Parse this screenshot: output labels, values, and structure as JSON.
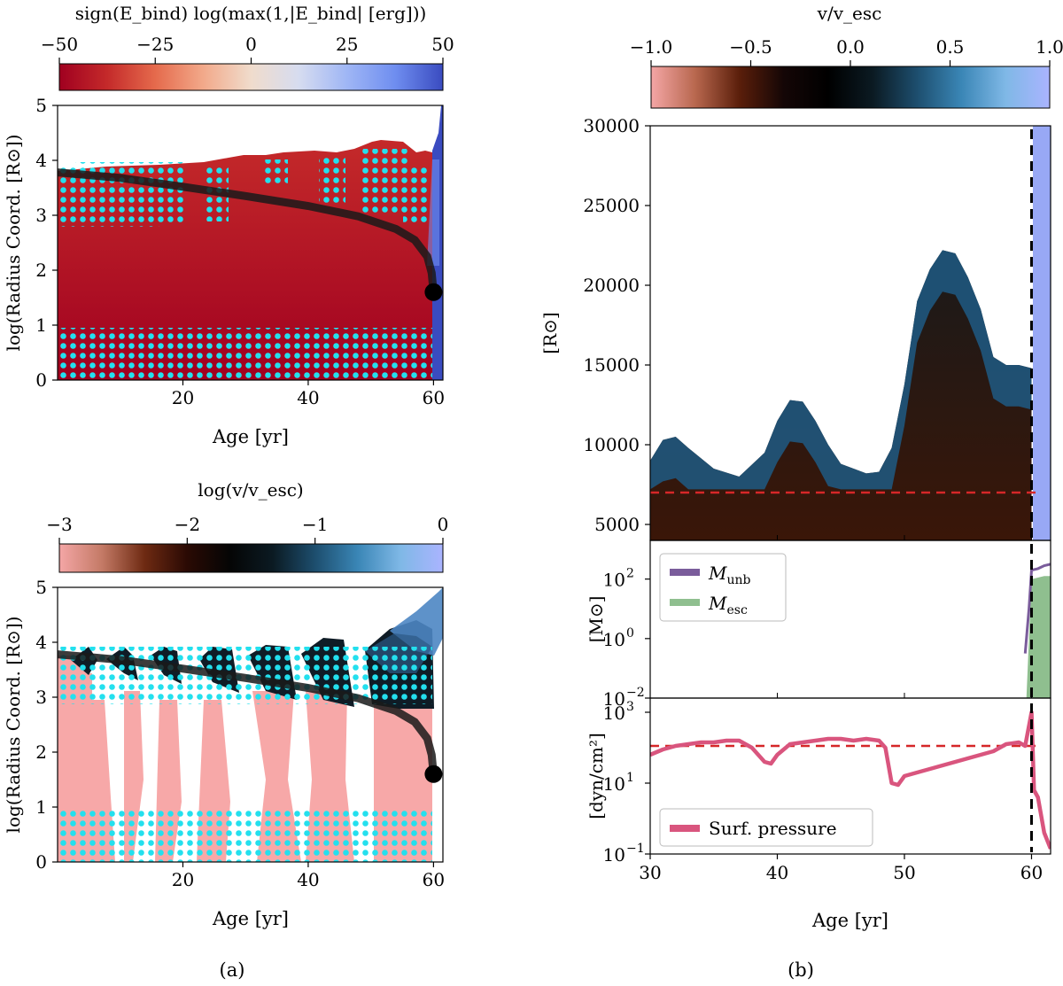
{
  "figure": {
    "label_a": "(a)",
    "label_b": "(b)"
  },
  "colors": {
    "bind_scale": [
      "#a00020",
      "#c42a2a",
      "#e56a4c",
      "#f2a98a",
      "#f0dccc",
      "#d6dcf0",
      "#9fb6f5",
      "#6f8ef0",
      "#3a4bc0"
    ],
    "vel_scale": [
      "#f4a6a6",
      "#b8674e",
      "#5a1e0a",
      "#140606",
      "#000000",
      "#0b1a22",
      "#1d4e6e",
      "#3a86b6",
      "#7fb8e6",
      "#aab4ff"
    ],
    "cyan": "#23e0ee",
    "dashed_red": "#d62728",
    "m_unb": "#7a5c9b",
    "m_esc": "#8fbf8f",
    "surf_pressure": "#d9557e"
  },
  "chart_data": [
    {
      "id": "a_top",
      "type": "heatmap",
      "colorbar": {
        "label": "sign(E_bind) log(max(1,|E_bind| [erg]))",
        "range": [
          -50,
          50
        ],
        "ticks": [
          "−50",
          "−25",
          "0",
          "25",
          "50"
        ]
      },
      "xlabel": "Age [yr]",
      "ylabel": "log(Radius Coord. [R⊙])",
      "xlim": [
        0,
        61.5
      ],
      "ylim": [
        0,
        5
      ],
      "xticks": [
        "20",
        "40",
        "60"
      ],
      "yticks": [
        "0",
        "1",
        "2",
        "3",
        "4",
        "5"
      ],
      "surface_track": {
        "x": [
          0,
          10,
          20,
          30,
          40,
          48,
          54,
          57,
          59,
          59.7,
          60
        ],
        "y": [
          3.78,
          3.68,
          3.52,
          3.35,
          3.17,
          2.98,
          2.75,
          2.55,
          2.25,
          1.95,
          1.6
        ]
      }
    },
    {
      "id": "a_bottom",
      "type": "heatmap",
      "colorbar": {
        "label": "log(v/v_esc)",
        "range": [
          -3,
          0
        ],
        "ticks": [
          "−3",
          "−2",
          "−1",
          "0"
        ]
      },
      "xlabel": "Age [yr]",
      "ylabel": "log(Radius Coord. [R⊙])",
      "xlim": [
        0,
        61.5
      ],
      "ylim": [
        0,
        5
      ],
      "xticks": [
        "20",
        "40",
        "60"
      ],
      "yticks": [
        "0",
        "1",
        "2",
        "3",
        "4",
        "5"
      ],
      "surface_track": {
        "x": [
          0,
          10,
          20,
          30,
          40,
          48,
          54,
          57,
          59,
          59.7,
          60
        ],
        "y": [
          3.78,
          3.68,
          3.52,
          3.35,
          3.17,
          2.98,
          2.75,
          2.55,
          2.25,
          1.95,
          1.6
        ]
      }
    },
    {
      "id": "b_top",
      "type": "heatmap",
      "colorbar": {
        "label": "v/v_esc",
        "range": [
          -1,
          1
        ],
        "ticks": [
          "−1.0",
          "−0.5",
          "0.0",
          "0.5",
          "1.0"
        ]
      },
      "ylabel": "[R⊙]",
      "xlim": [
        30,
        61.5
      ],
      "ylim": [
        4000,
        30000
      ],
      "yticks": [
        "5000",
        "10000",
        "15000",
        "20000",
        "25000",
        "30000"
      ],
      "yticks_values": [
        5000,
        10000,
        15000,
        20000,
        25000,
        30000
      ],
      "outer_boundary": {
        "x": [
          30,
          31,
          32,
          33,
          35,
          37,
          39,
          40,
          41,
          42,
          43,
          44,
          45,
          46,
          47,
          48,
          49,
          50,
          51,
          52,
          53,
          54,
          55,
          56,
          57,
          58,
          59,
          60
        ],
        "y": [
          9000,
          10300,
          10500,
          9800,
          8500,
          8000,
          9500,
          11500,
          12800,
          12700,
          11500,
          10000,
          8800,
          8500,
          8200,
          8300,
          9800,
          13800,
          19000,
          21000,
          22200,
          22000,
          20500,
          18500,
          15500,
          15000,
          15000,
          14800
        ]
      },
      "reference_line": 7000,
      "event_age": 60
    },
    {
      "id": "b_mid",
      "type": "area",
      "ylabel": "[M⊙]",
      "xlim": [
        30,
        61.5
      ],
      "ylim_log": [
        -2,
        3.3
      ],
      "yticks": [
        "10",
        "10",
        "10"
      ],
      "yticks_exp": [
        "2",
        "0",
        "−2"
      ],
      "series": [
        {
          "name": "M_unb",
          "x": [
            59.5,
            59.8,
            60.0,
            60.5,
            61.0,
            61.5
          ],
          "log_y": [
            -0.5,
            1.0,
            2.3,
            2.35,
            2.45,
            2.5
          ]
        },
        {
          "name": "M_esc",
          "x": [
            59.6,
            60.0,
            60.5,
            61.0,
            61.5
          ],
          "log_y": [
            -2,
            2.0,
            2.05,
            2.1,
            2.1
          ]
        }
      ],
      "legend": [
        "M_unb",
        "M_esc"
      ]
    },
    {
      "id": "b_bottom",
      "type": "line",
      "xlabel": "Age [yr]",
      "ylabel": "[dyn/cm²]",
      "xlim": [
        30,
        61.5
      ],
      "ylim_log": [
        -1,
        3.4
      ],
      "xticks": [
        "30",
        "40",
        "50",
        "60"
      ],
      "xticks_values": [
        30,
        40,
        50,
        60
      ],
      "yticks": [
        "10",
        "10",
        "10"
      ],
      "yticks_exp": [
        "3",
        "1",
        "−1"
      ],
      "series": [
        {
          "name": "Surf. pressure",
          "x": [
            30,
            31,
            32,
            33,
            34,
            35,
            36,
            37,
            38,
            39,
            39.5,
            40,
            41,
            42,
            43,
            44,
            45,
            46,
            47,
            48,
            48.5,
            49,
            49.5,
            50,
            51,
            52,
            53,
            54,
            55,
            56,
            57,
            58,
            59,
            59.5,
            60,
            60.2,
            60.5,
            61,
            61.5
          ],
          "log_y": [
            1.8,
            1.95,
            2.05,
            2.1,
            2.15,
            2.15,
            2.2,
            2.2,
            2.0,
            1.6,
            1.55,
            1.8,
            2.1,
            2.15,
            2.2,
            2.25,
            2.25,
            2.2,
            2.25,
            2.2,
            2.0,
            1.0,
            0.95,
            1.2,
            1.3,
            1.4,
            1.5,
            1.6,
            1.7,
            1.8,
            1.9,
            2.1,
            2.15,
            2.05,
            3.0,
            0.8,
            0.6,
            -0.4,
            -0.85
          ]
        }
      ],
      "reference_log_y": 2.05,
      "legend": [
        "Surf. pressure"
      ],
      "event_age": 60
    }
  ]
}
